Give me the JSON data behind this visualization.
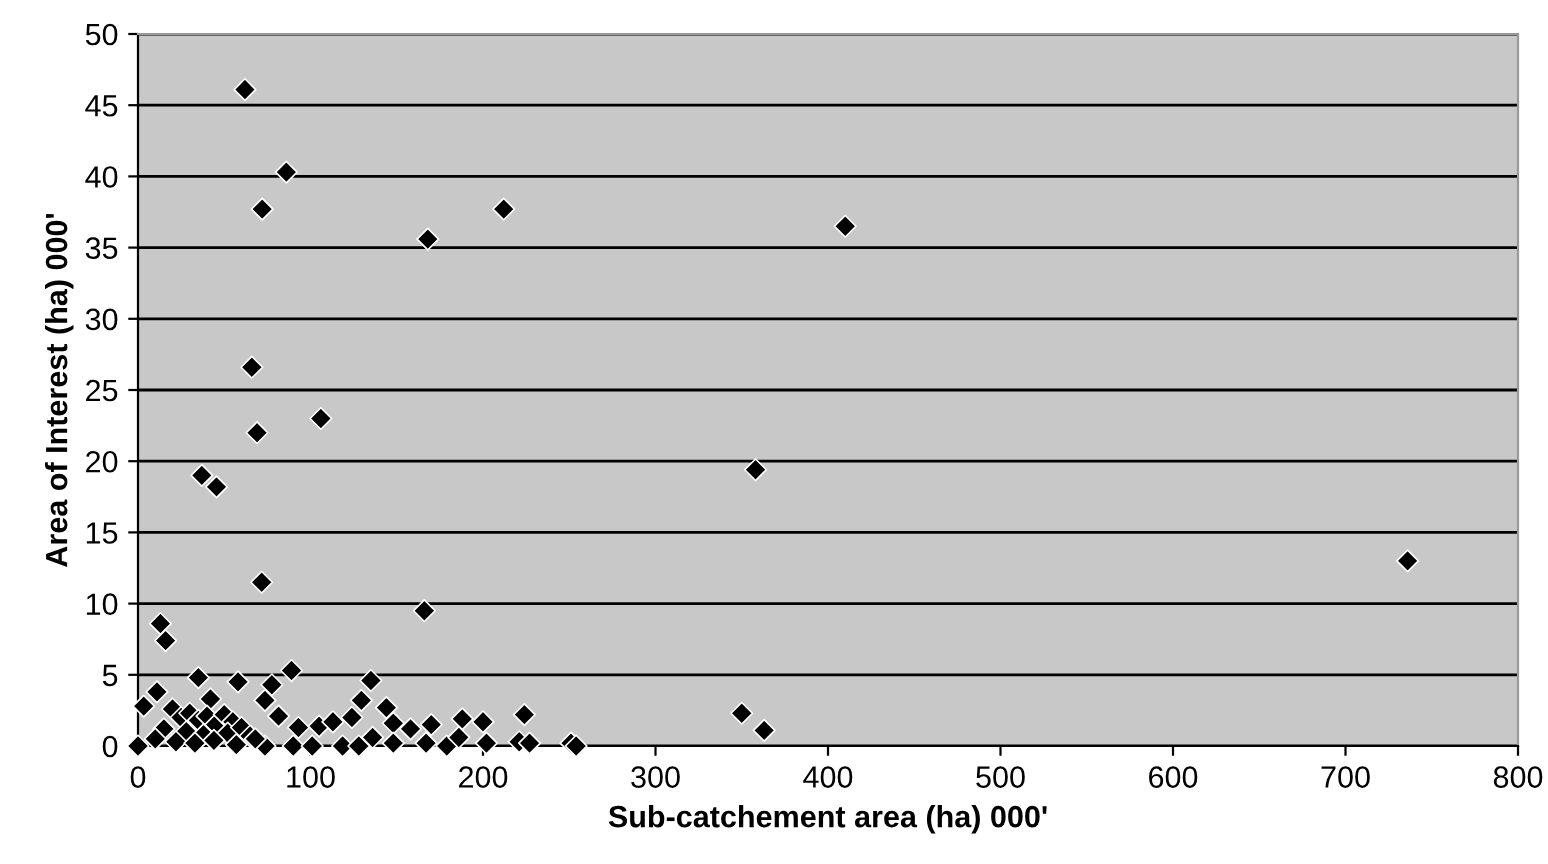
{
  "chart_data": {
    "type": "scatter",
    "xlabel": "Sub-catchement area (ha) 000'",
    "ylabel": "Area of Interest (ha) 000'",
    "series": [
      {
        "color": "#000000",
        "x": [
          62,
          86,
          72,
          168,
          212,
          410,
          66,
          69,
          106,
          37,
          45.5,
          358,
          736,
          350,
          363,
          71.7,
          13,
          16,
          166,
          11,
          35,
          58,
          77.6,
          89,
          135,
          129.5,
          73.6,
          42,
          3.3,
          124,
          144,
          148,
          158,
          170,
          188,
          200,
          224,
          167,
          179,
          186,
          202,
          221,
          227,
          251,
          254,
          0,
          73.6,
          81.5,
          90,
          93,
          105,
          113,
          101,
          118.6,
          128,
          136,
          148,
          20,
          25,
          30,
          35,
          40,
          45,
          50,
          55,
          15,
          28,
          38,
          52,
          60,
          65,
          10,
          22,
          33,
          44,
          57,
          68
        ],
        "values": [
          46.1,
          40.3,
          37.7,
          35.6,
          37.7,
          36.5,
          26.6,
          22.0,
          23.0,
          19.0,
          18.2,
          19.4,
          13.0,
          2.3,
          1.1,
          11.5,
          8.6,
          7.4,
          9.5,
          3.8,
          4.8,
          4.5,
          4.3,
          5.3,
          4.6,
          3.2,
          3.2,
          3.3,
          2.8,
          2.0,
          2.7,
          1.6,
          1.2,
          1.5,
          1.9,
          1.7,
          2.2,
          0.2,
          0,
          0.6,
          0.2,
          0.3,
          0.2,
          0.2,
          0,
          0,
          0,
          2.1,
          0,
          1.3,
          1.4,
          1.7,
          0,
          0,
          0,
          0.6,
          0.2,
          2.6,
          2.0,
          2.3,
          1.8,
          2.1,
          1.5,
          2.2,
          1.7,
          1.2,
          1.0,
          0.8,
          0.9,
          1.3,
          0.7,
          0.5,
          0.3,
          0.2,
          0.4,
          0.1,
          0.5
        ]
      }
    ],
    "xlim": [
      0,
      800
    ],
    "xticks": [
      0,
      100,
      200,
      300,
      400,
      500,
      600,
      700,
      800
    ],
    "ylim": [
      0,
      50
    ],
    "yticks": [
      0,
      5,
      10,
      15,
      20,
      25,
      30,
      35,
      40,
      45,
      50
    ],
    "grid": "y",
    "marker": "diamond",
    "legend": false
  }
}
